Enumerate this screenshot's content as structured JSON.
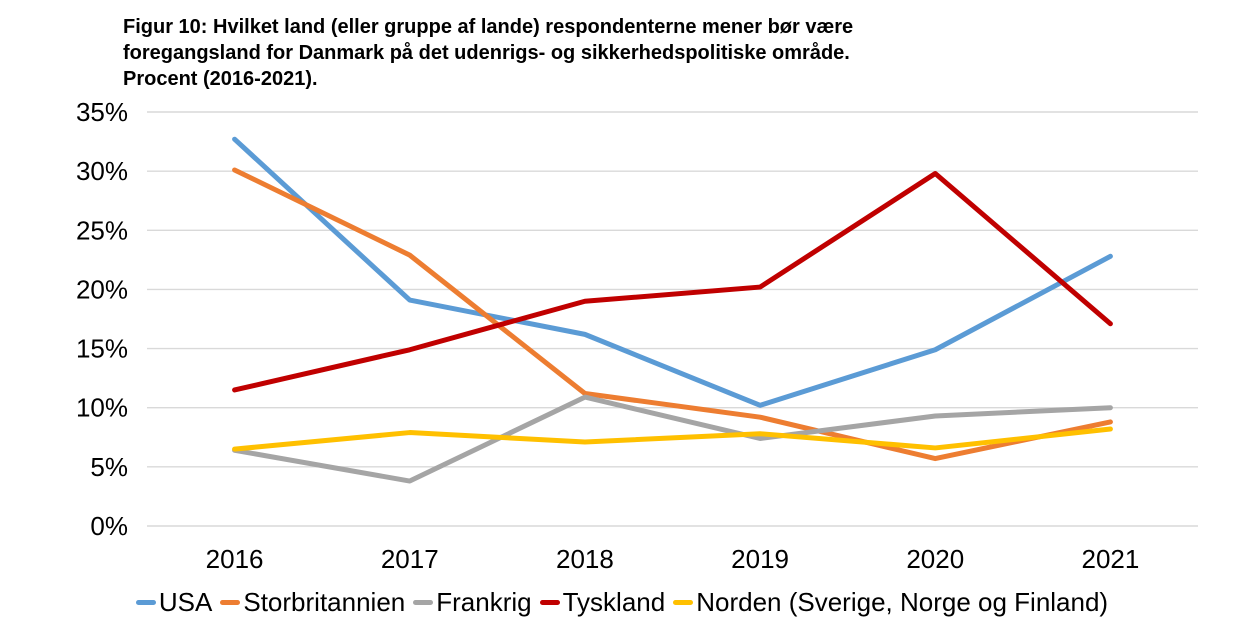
{
  "title": {
    "lines": [
      "Figur 10: Hvilket land (eller gruppe af lande) respondenterne mener bør være",
      "foregangsland for Danmark på det udenrigs- og sikkerhedspolitiske område.",
      "Procent (2016-2021)."
    ]
  },
  "chart_data": {
    "type": "line",
    "title": "Figur 10: Hvilket land (eller gruppe af lande) respondenterne mener bør være foregangsland for Danmark på det udenrigs- og sikkerhedspolitiske område. Procent (2016-2021).",
    "categories": [
      "2016",
      "2017",
      "2018",
      "2019",
      "2020",
      "2021"
    ],
    "series": [
      {
        "name": "USA",
        "color": "#5B9BD5",
        "values": [
          32.7,
          19.1,
          16.2,
          10.2,
          14.9,
          22.8
        ]
      },
      {
        "name": "Storbritannien",
        "color": "#ED7D31",
        "values": [
          30.1,
          22.9,
          11.2,
          9.2,
          5.7,
          8.8
        ]
      },
      {
        "name": "Frankrig",
        "color": "#A5A5A5",
        "values": [
          6.4,
          3.8,
          10.9,
          7.4,
          9.3,
          10.0
        ]
      },
      {
        "name": "Tyskland",
        "color": "#C00000",
        "values": [
          11.5,
          14.9,
          19.0,
          20.2,
          29.8,
          17.1
        ]
      },
      {
        "name": "Norden (Sverige, Norge og Finland)",
        "color": "#FFC000",
        "values": [
          6.5,
          7.9,
          7.1,
          7.8,
          6.6,
          8.2
        ]
      }
    ],
    "y_ticks": [
      "0%",
      "5%",
      "10%",
      "15%",
      "20%",
      "25%",
      "30%",
      "35%"
    ],
    "ylim": [
      0,
      35
    ],
    "xlabel": "",
    "ylabel": "",
    "grid": true,
    "gridline_color": "#D9D9D9",
    "legend_position": "bottom",
    "text_color": "#000000"
  }
}
